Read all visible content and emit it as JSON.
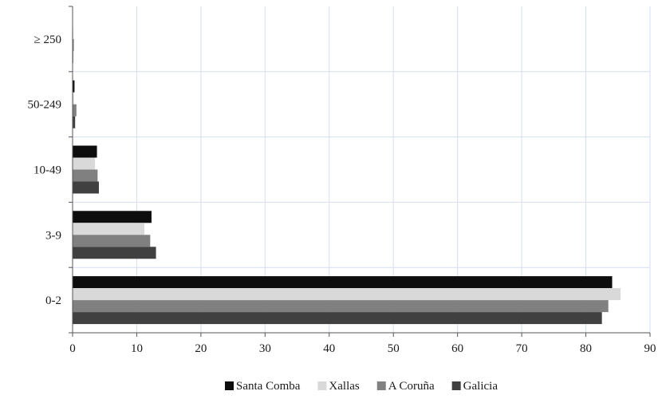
{
  "chart_data": {
    "type": "bar",
    "orientation": "horizontal",
    "categories": [
      "0-2",
      "3-9",
      "10-49",
      "50-249",
      "≥ 250"
    ],
    "series": [
      {
        "name": "Santa Comba",
        "color": "#0d0d0d",
        "values": [
          84.1,
          12.3,
          3.8,
          0.3,
          0.0
        ]
      },
      {
        "name": "Xallas",
        "color": "#d9d9d9",
        "values": [
          85.4,
          11.2,
          3.5,
          0.2,
          0.1
        ]
      },
      {
        "name": "A Coruña",
        "color": "#808080",
        "values": [
          83.5,
          12.1,
          3.9,
          0.6,
          0.2
        ]
      },
      {
        "name": "Galicia",
        "color": "#404040",
        "values": [
          82.5,
          13.0,
          4.1,
          0.4,
          0.1
        ]
      }
    ],
    "x_ticks": [
      "0",
      "10",
      "20",
      "30",
      "40",
      "50",
      "60",
      "70",
      "80",
      "90"
    ],
    "xlim": [
      0,
      90
    ],
    "grid": true,
    "legend_position": "bottom",
    "title": "",
    "xlabel": "",
    "ylabel": ""
  }
}
